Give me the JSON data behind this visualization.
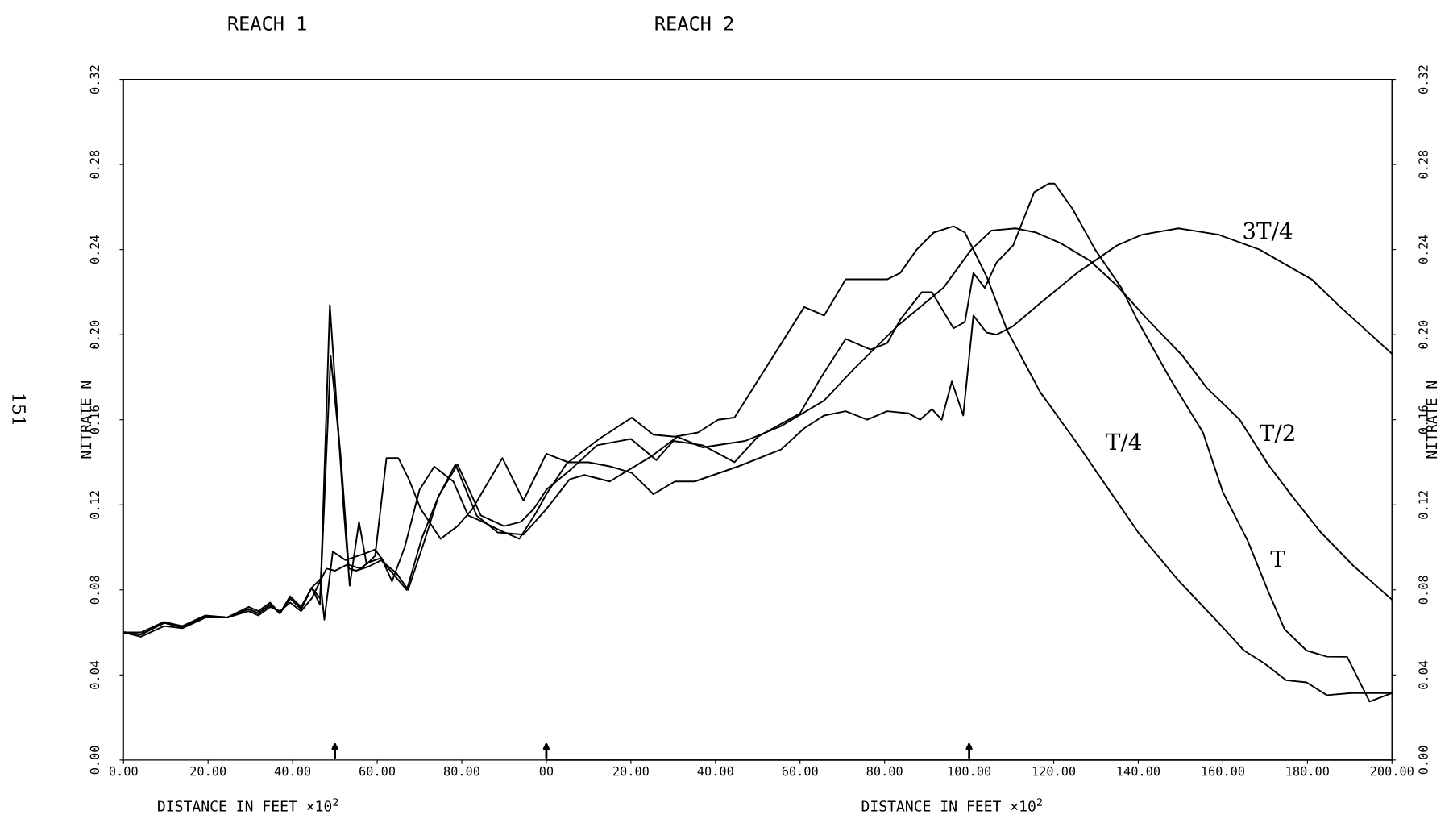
{
  "chart_data": [
    {
      "type": "line",
      "title": "REACH 1",
      "xlabel": "DISTANCE IN FEET ×10$^{2}$",
      "ylabel": "NITRATE N",
      "annotations": [
        "151"
      ],
      "xlim": [
        0,
        100
      ],
      "xticks": [
        {
          "value": 0,
          "label": "0.00"
        },
        {
          "value": 20,
          "label": "20.00"
        },
        {
          "value": 40,
          "label": "40.00"
        },
        {
          "value": 60,
          "label": "60.00"
        },
        {
          "value": 80,
          "label": "80.00"
        }
      ],
      "ylim": [
        0,
        0.32
      ],
      "yticks": [
        {
          "value": 0,
          "label": "0.00"
        },
        {
          "value": 0.04,
          "label": "0.04"
        },
        {
          "value": 0.08,
          "label": "0.08"
        },
        {
          "value": 0.12,
          "label": "0.12"
        },
        {
          "value": 0.16,
          "label": "0.16"
        },
        {
          "value": 0.2,
          "label": "0.20"
        },
        {
          "value": 0.24,
          "label": "0.24"
        },
        {
          "value": 0.28,
          "label": "0.28"
        },
        {
          "value": 0.32,
          "label": "0.32"
        }
      ],
      "grid": false,
      "legend": false,
      "marker": "none",
      "line_style": "solid",
      "series": [
        {
          "color": "#000000",
          "x": [
            0,
            4.1,
            9.6,
            13.9,
            19.4,
            24.5,
            29.6,
            31.9,
            34.7,
            37,
            39.4,
            42,
            44.5,
            46.5,
            48.8,
            52,
            53.5,
            55.7,
            57.5,
            59.5,
            62.2,
            65,
            67.5,
            70.3,
            75,
            79,
            82.5,
            89.6,
            94.6,
            100
          ],
          "values": [
            0.06,
            0.059,
            0.0645,
            0.0625,
            0.0675,
            0.067,
            0.071,
            0.069,
            0.073,
            0.069,
            0.076,
            0.071,
            0.081,
            0.073,
            0.214,
            0.12,
            0.082,
            0.112,
            0.092,
            0.096,
            0.142,
            0.142,
            0.132,
            0.118,
            0.104,
            0.11,
            0.118,
            0.142,
            0.122,
            0.144
          ]
        },
        {
          "color": "#000000",
          "x": [
            0,
            4.1,
            9.6,
            13.9,
            19.4,
            24.5,
            29.6,
            31.9,
            34.7,
            37,
            39.4,
            42,
            44.5,
            46.5,
            49,
            51.5,
            53.3,
            55,
            58,
            61,
            64,
            67,
            70.5,
            74.5,
            78.5,
            83.5,
            88.5,
            94.6,
            100
          ],
          "values": [
            0.06,
            0.059,
            0.0645,
            0.0625,
            0.0675,
            0.067,
            0.071,
            0.069,
            0.073,
            0.069,
            0.076,
            0.071,
            0.081,
            0.076,
            0.19,
            0.14,
            0.09,
            0.089,
            0.091,
            0.094,
            0.087,
            0.08,
            0.104,
            0.124,
            0.139,
            0.115,
            0.107,
            0.106,
            0.118
          ]
        },
        {
          "color": "#000000",
          "x": [
            0,
            4.1,
            9.6,
            13.9,
            19.4,
            24.5,
            29.6,
            31.9,
            34.7,
            37,
            39.4,
            42,
            44.5,
            46,
            48,
            50,
            53,
            56,
            58,
            61,
            63.5,
            66.5,
            70,
            73.5,
            78,
            81.5,
            85,
            89,
            93.6,
            97.5,
            100
          ],
          "values": [
            0.06,
            0.058,
            0.063,
            0.062,
            0.067,
            0.067,
            0.07,
            0.068,
            0.072,
            0.07,
            0.074,
            0.07,
            0.076,
            0.082,
            0.09,
            0.089,
            0.092,
            0.09,
            0.093,
            0.095,
            0.084,
            0.1,
            0.127,
            0.138,
            0.131,
            0.115,
            0.112,
            0.108,
            0.104,
            0.116,
            0.125
          ]
        },
        {
          "color": "#000000",
          "x": [
            0,
            4.1,
            9.6,
            13.9,
            19.4,
            24.5,
            29.6,
            31.9,
            34.7,
            37,
            39.4,
            42,
            44.5,
            46.5,
            47.5,
            49.5,
            52.5,
            57,
            59.5,
            62,
            64.5,
            67.3,
            71,
            74.5,
            79,
            84.5,
            90,
            94,
            97,
            100
          ],
          "values": [
            0.06,
            0.06,
            0.065,
            0.063,
            0.068,
            0.067,
            0.072,
            0.07,
            0.074,
            0.069,
            0.077,
            0.072,
            0.081,
            0.085,
            0.066,
            0.098,
            0.094,
            0.097,
            0.099,
            0.092,
            0.088,
            0.08,
            0.102,
            0.124,
            0.139,
            0.115,
            0.11,
            0.112,
            0.118,
            0.127
          ]
        }
      ]
    },
    {
      "type": "line",
      "title": "REACH 2",
      "xlabel": "DISTANCE IN FEET ×10$^{2}$",
      "y2label": "NITRATE N",
      "xlim": [
        0,
        200
      ],
      "xticks": [
        {
          "value": 0,
          "label": "00"
        },
        {
          "value": 20,
          "label": "20.00"
        },
        {
          "value": 40,
          "label": "40.00"
        },
        {
          "value": 60,
          "label": "60.00"
        },
        {
          "value": 80,
          "label": "80.00"
        },
        {
          "value": 100,
          "label": "100.00"
        },
        {
          "value": 120,
          "label": "120.00"
        },
        {
          "value": 140,
          "label": "140.00"
        },
        {
          "value": 160,
          "label": "160.00"
        },
        {
          "value": 180,
          "label": "180.00"
        },
        {
          "value": 200,
          "label": "200.00"
        }
      ],
      "y2lim": [
        0,
        0.32
      ],
      "y2ticks": [
        {
          "value": 0,
          "label": "0.00"
        },
        {
          "value": 0.04,
          "label": "0.04"
        },
        {
          "value": 0.08,
          "label": "0.08"
        },
        {
          "value": 0.12,
          "label": "0.12"
        },
        {
          "value": 0.16,
          "label": "0.16"
        },
        {
          "value": 0.2,
          "label": "0.20"
        },
        {
          "value": 0.24,
          "label": "0.24"
        },
        {
          "value": 0.28,
          "label": "0.28"
        },
        {
          "value": 0.32,
          "label": "0.32"
        }
      ],
      "grid": false,
      "legend": false,
      "marker": "none",
      "line_style": "solid",
      "series": [
        {
          "name": "T/4",
          "axis": "y2",
          "color": "#000000",
          "x": [
            0,
            5.2,
            12.5,
            20.2,
            25.3,
            30.4,
            35.9,
            40.6,
            44.5,
            61,
            65.7,
            70.8,
            80.6,
            83.7,
            87.6,
            91.6,
            96.3,
            99,
            104.2,
            109,
            116.8,
            125.5,
            130.3,
            140,
            149.5,
            159,
            165,
            169.7,
            175,
            179.8,
            184.6,
            190.4,
            200
          ],
          "values": [
            0.144,
            0.14,
            0.151,
            0.161,
            0.153,
            0.152,
            0.154,
            0.16,
            0.161,
            0.213,
            0.209,
            0.226,
            0.226,
            0.229,
            0.24,
            0.248,
            0.251,
            0.248,
            0.227,
            0.202,
            0.173,
            0.149,
            0.135,
            0.107,
            0.0844,
            0.0645,
            0.0515,
            0.0456,
            0.0375,
            0.0365,
            0.0305,
            0.0315,
            0.0315
          ]
        },
        {
          "name": "T/2",
          "axis": "y2",
          "color": "#000000",
          "x": [
            0,
            5.5,
            9,
            15,
            20,
            25,
            31,
            37,
            47,
            55.5,
            65.7,
            72.8,
            83,
            93.9,
            100.5,
            105.3,
            111,
            115.9,
            121.6,
            128.4,
            135,
            141.8,
            150.5,
            156.2,
            164,
            170.7,
            176.4,
            183.2,
            190.9,
            200
          ],
          "values": [
            0.118,
            0.132,
            0.134,
            0.131,
            0.137,
            0.143,
            0.152,
            0.147,
            0.15,
            0.157,
            0.169,
            0.184,
            0.204,
            0.222,
            0.24,
            0.249,
            0.25,
            0.248,
            0.243,
            0.235,
            0.223,
            0.208,
            0.19,
            0.175,
            0.16,
            0.139,
            0.124,
            0.107,
            0.0913,
            0.0754
          ]
        },
        {
          "name": "3T/4",
          "axis": "y2",
          "color": "#000000",
          "x": [
            0,
            1,
            5,
            10,
            15.2,
            20.2,
            25.3,
            30.4,
            35.1,
            45.3,
            55.5,
            61,
            65.7,
            70.8,
            75.9,
            80.6,
            85.7,
            88.4,
            91.2,
            93.5,
            95.9,
            98.6,
            101,
            104.1,
            106.5,
            110.4,
            116.3,
            125.5,
            135,
            140.9,
            149.5,
            159,
            168.7,
            181,
            187.8,
            200
          ],
          "values": [
            0.125,
            0.128,
            0.14,
            0.14,
            0.138,
            0.135,
            0.125,
            0.131,
            0.131,
            0.138,
            0.146,
            0.156,
            0.162,
            0.164,
            0.16,
            0.164,
            0.163,
            0.16,
            0.165,
            0.16,
            0.178,
            0.162,
            0.209,
            0.201,
            0.2,
            0.204,
            0.214,
            0.229,
            0.242,
            0.247,
            0.25,
            0.247,
            0.24,
            0.226,
            0.213,
            0.191
          ]
        },
        {
          "name": "T",
          "axis": "y2",
          "color": "#000000",
          "x": [
            0,
            0.5,
            6,
            12,
            20,
            26,
            30,
            37,
            44.5,
            50,
            55.5,
            60,
            65,
            70.8,
            76.7,
            80.6,
            83.7,
            88.8,
            91.2,
            96.3,
            99,
            101,
            103.7,
            106.5,
            110.4,
            115.4,
            118.8,
            120.2,
            124.5,
            129.8,
            136,
            140,
            147.6,
            155.3,
            160,
            165.9,
            170.7,
            174.6,
            179.8,
            184.6,
            189.4,
            194.7,
            200
          ],
          "values": [
            0.127,
            0.128,
            0.137,
            0.148,
            0.151,
            0.141,
            0.15,
            0.148,
            0.14,
            0.152,
            0.158,
            0.163,
            0.18,
            0.198,
            0.193,
            0.196,
            0.207,
            0.22,
            0.22,
            0.203,
            0.206,
            0.229,
            0.222,
            0.234,
            0.242,
            0.267,
            0.271,
            0.271,
            0.259,
            0.24,
            0.222,
            0.206,
            0.179,
            0.154,
            0.126,
            0.103,
            0.0794,
            0.0615,
            0.0515,
            0.0486,
            0.0485,
            0.0275,
            0.0315
          ]
        }
      ]
    }
  ]
}
